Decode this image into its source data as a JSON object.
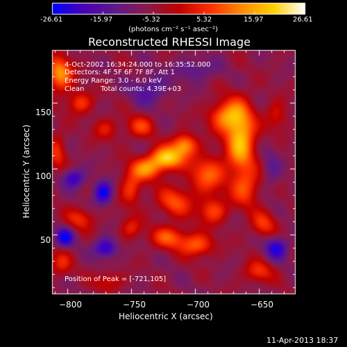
{
  "chart_data": {
    "type": "heatmap",
    "title": "Reconstructed RHESSI Image",
    "xlabel": "Heliocentric X (arcsec)",
    "ylabel": "Heliocentric Y (arcsec)",
    "xlim": [
      -812,
      -621
    ],
    "ylim": [
      5,
      190
    ],
    "xticks": [
      -800,
      -750,
      -700,
      -650
    ],
    "xtick_labels": [
      "−800",
      "−750",
      "−700",
      "−650"
    ],
    "yticks": [
      50,
      100,
      150
    ],
    "ytick_labels": [
      "50",
      "100",
      "150"
    ],
    "colorbar": {
      "range": [
        -26.61,
        26.61
      ],
      "tick_labels": [
        "-26.61",
        "-15.97",
        "-5.32",
        "5.32",
        "15.97",
        "26.61"
      ],
      "unit_label": "(photons cm⁻² s⁻¹ asec⁻²)",
      "colors": [
        "#0000ff",
        "#4b00b4",
        "#5e1a8a",
        "#8b1a4a",
        "#c00000",
        "#ff3000",
        "#ff8a00",
        "#ffd000",
        "#ffffff"
      ]
    },
    "annotations": {
      "time_range": "4-Oct-2002 16:34:24.000 to 16:35:52.000",
      "detectors": "Detectors: 4F 5F 6F 7F 8F, Att 1",
      "energy_range": "Energy Range: 3.0 - 6.0 keV",
      "algorithm": "Clean",
      "total_counts": "Total counts: 4.39E+03",
      "peak_position": "Position of Peak = [-721,105]"
    },
    "peak": {
      "x": -721,
      "y": 105
    },
    "sources": [
      {
        "x": -722,
        "y": 108,
        "amp": 26,
        "sx": 9,
        "sy": 6
      },
      {
        "x": -708,
        "y": 118,
        "amp": 20,
        "sx": 7,
        "sy": 6
      },
      {
        "x": -738,
        "y": 100,
        "amp": 18,
        "sx": 9,
        "sy": 6
      },
      {
        "x": -664,
        "y": 123,
        "amp": 25,
        "sx": 8,
        "sy": 18
      },
      {
        "x": -676,
        "y": 140,
        "amp": 18,
        "sx": 9,
        "sy": 8
      },
      {
        "x": -690,
        "y": 96,
        "amp": 16,
        "sx": 10,
        "sy": 10
      },
      {
        "x": -716,
        "y": 75,
        "amp": 14,
        "sx": 10,
        "sy": 8
      },
      {
        "x": -686,
        "y": 68,
        "amp": 14,
        "sx": 8,
        "sy": 7
      },
      {
        "x": -720,
        "y": 48,
        "amp": 15,
        "sx": 10,
        "sy": 6
      },
      {
        "x": -698,
        "y": 42,
        "amp": 16,
        "sx": 9,
        "sy": 6
      },
      {
        "x": -750,
        "y": 85,
        "amp": 13,
        "sx": 6,
        "sy": 9
      },
      {
        "x": -660,
        "y": 85,
        "amp": 13,
        "sx": 8,
        "sy": 10
      },
      {
        "x": -646,
        "y": 58,
        "amp": 12,
        "sx": 7,
        "sy": 7
      },
      {
        "x": -806,
        "y": 172,
        "amp": 21,
        "sx": 7,
        "sy": 9
      },
      {
        "x": -790,
        "y": 150,
        "amp": 13,
        "sx": 7,
        "sy": 6
      },
      {
        "x": -743,
        "y": 132,
        "amp": 12,
        "sx": 8,
        "sy": 6
      },
      {
        "x": -770,
        "y": 130,
        "amp": 9,
        "sx": 7,
        "sy": 6
      },
      {
        "x": -808,
        "y": 113,
        "amp": 11,
        "sx": 5,
        "sy": 10
      },
      {
        "x": -790,
        "y": 62,
        "amp": 11,
        "sx": 8,
        "sy": 6
      },
      {
        "x": -805,
        "y": 28,
        "amp": 10,
        "sx": 6,
        "sy": 7
      },
      {
        "x": -650,
        "y": 22,
        "amp": 12,
        "sx": 8,
        "sy": 6
      },
      {
        "x": -768,
        "y": 15,
        "amp": 9,
        "sx": 8,
        "sy": 5
      },
      {
        "x": -636,
        "y": 140,
        "amp": 9,
        "sx": 6,
        "sy": 8
      },
      {
        "x": -750,
        "y": 55,
        "amp": 10,
        "sx": 6,
        "sy": 6
      },
      {
        "x": -772,
        "y": 82,
        "amp": -20,
        "sx": 5,
        "sy": 6
      },
      {
        "x": -795,
        "y": 93,
        "amp": -16,
        "sx": 6,
        "sy": 5
      },
      {
        "x": -770,
        "y": 40,
        "amp": -18,
        "sx": 6,
        "sy": 5
      },
      {
        "x": -802,
        "y": 48,
        "amp": -19,
        "sx": 5,
        "sy": 5
      },
      {
        "x": -636,
        "y": 40,
        "amp": -17,
        "sx": 6,
        "sy": 6
      },
      {
        "x": -736,
        "y": 160,
        "amp": -10,
        "sx": 10,
        "sy": 8
      },
      {
        "x": -700,
        "y": 175,
        "amp": -8,
        "sx": 12,
        "sy": 6
      },
      {
        "x": -640,
        "y": 100,
        "amp": -6,
        "sx": 5,
        "sy": 12
      }
    ],
    "background_level": -6.5
  },
  "timestamp": "11-Apr-2013 18:37"
}
